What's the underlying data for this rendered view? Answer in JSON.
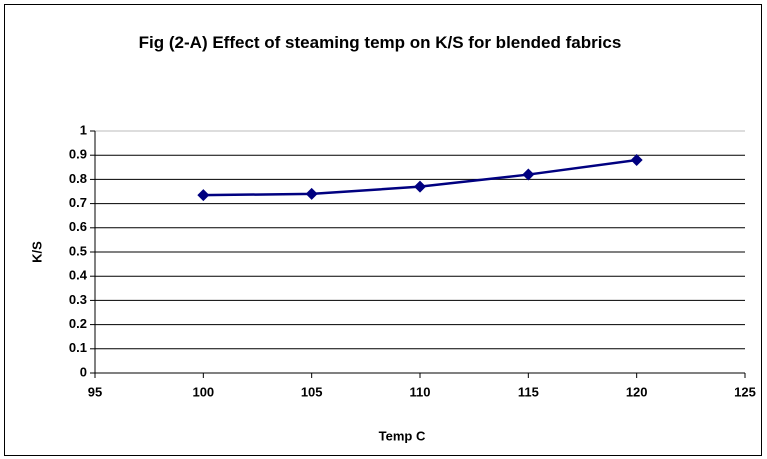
{
  "chart_data": {
    "type": "line",
    "title": "Fig (2-A) Effect of steaming temp on K/S for blended fabrics",
    "x_label": "Temp C",
    "y_label": "K/S",
    "x": [
      100,
      105,
      110,
      115,
      120
    ],
    "series": [
      {
        "name": "K/S",
        "color": "#000080",
        "values": [
          0.735,
          0.74,
          0.77,
          0.82,
          0.88
        ]
      }
    ],
    "xlim": [
      95,
      125
    ],
    "xticks": [
      95,
      100,
      105,
      110,
      115,
      120,
      125
    ],
    "ylim": [
      0,
      1
    ],
    "yticks": [
      0,
      0.1,
      0.2,
      0.3,
      0.4,
      0.5,
      0.6,
      0.7,
      0.8,
      0.9,
      1
    ],
    "grid": true,
    "legend": false
  }
}
